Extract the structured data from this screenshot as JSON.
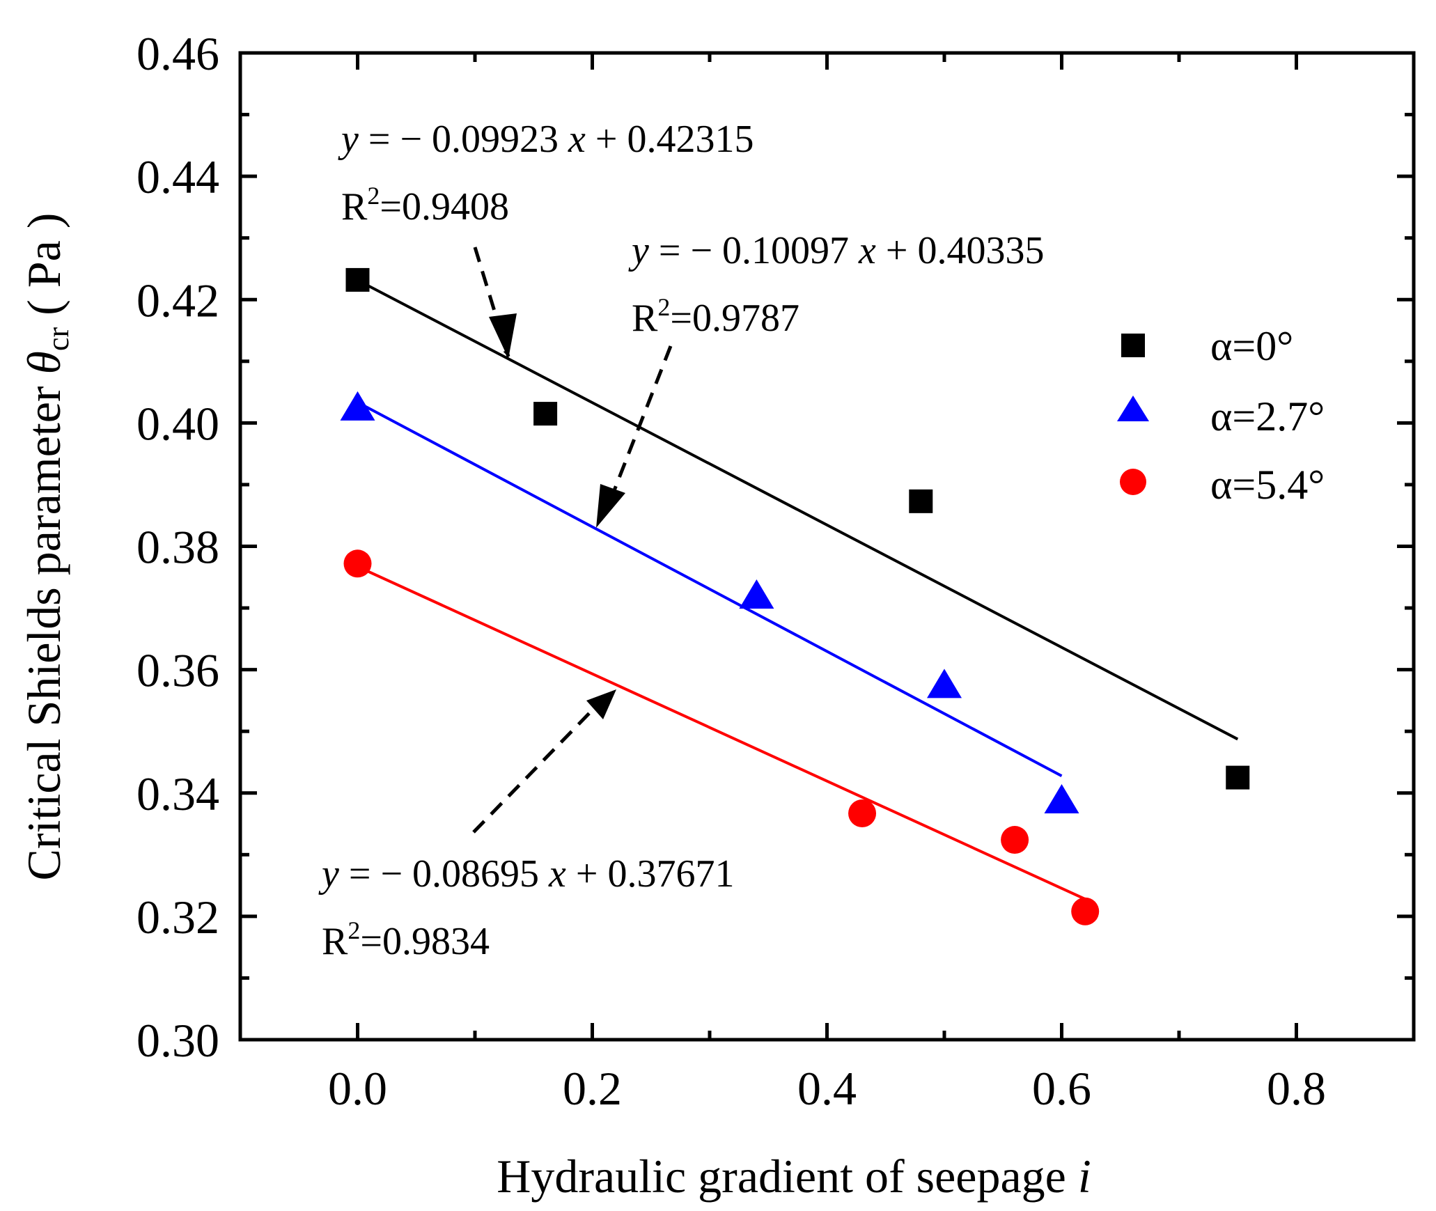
{
  "chart_data": {
    "type": "scatter",
    "xlabel": "Hydraulic gradient of seepage",
    "xlabel_var": "i",
    "ylabel": "Critical Shields parameter",
    "ylabel_symbol": "θ",
    "ylabel_subscript": "cr",
    "ylabel_unit": "( Pa )",
    "xlim": [
      -0.1,
      0.9
    ],
    "ylim": [
      0.3,
      0.46
    ],
    "xticks": [
      0.0,
      0.2,
      0.4,
      0.6,
      0.8
    ],
    "xtick_labels": [
      "0.0",
      "0.2",
      "0.4",
      "0.6",
      "0.8"
    ],
    "yticks": [
      0.3,
      0.32,
      0.34,
      0.36,
      0.38,
      0.4,
      0.42,
      0.44,
      0.46
    ],
    "ytick_labels": [
      "0.30",
      "0.32",
      "0.34",
      "0.36",
      "0.38",
      "0.40",
      "0.42",
      "0.44",
      "0.46"
    ],
    "series": [
      {
        "name": "α=0°",
        "marker": "square",
        "color": "#000000",
        "x": [
          0.0,
          0.16,
          0.48,
          0.75
        ],
        "y": [
          0.4232,
          0.4015,
          0.3873,
          0.3425
        ],
        "fit": {
          "slope": -0.09923,
          "intercept": 0.42315,
          "x_range": [
            0.0,
            0.75
          ]
        },
        "equation": {
          "y": "y",
          "rhs": " = − 0.09923 ",
          "x": "x",
          "const": " + 0.42315"
        },
        "r2": {
          "R": "R",
          "sup": "2",
          "value": "=0.9408"
        }
      },
      {
        "name": "α=2.7°",
        "marker": "triangle",
        "color": "#0000ff",
        "x": [
          0.0,
          0.34,
          0.5,
          0.6
        ],
        "y": [
          0.4022,
          0.3717,
          0.3572,
          0.3385
        ],
        "fit": {
          "slope": -0.10097,
          "intercept": 0.40335,
          "x_range": [
            0.0,
            0.6
          ]
        },
        "equation": {
          "y": "y",
          "rhs": " = − 0.10097 ",
          "x": "x",
          "const": " + 0.40335"
        },
        "r2": {
          "R": "R",
          "sup": "2",
          "value": "=0.9787"
        }
      },
      {
        "name": "α=5.4°",
        "marker": "circle",
        "color": "#ff0000",
        "x": [
          0.0,
          0.43,
          0.56,
          0.62
        ],
        "y": [
          0.3772,
          0.3367,
          0.3324,
          0.3208
        ],
        "fit": {
          "slope": -0.08695,
          "intercept": 0.37671,
          "x_range": [
            0.0,
            0.62
          ]
        },
        "equation": {
          "y": "y",
          "rhs": " = − 0.08695 ",
          "x": "x",
          "const": " + 0.37671"
        },
        "r2": {
          "R": "R",
          "sup": "2",
          "value": "=0.9834"
        }
      }
    ],
    "legend_position": "right"
  }
}
